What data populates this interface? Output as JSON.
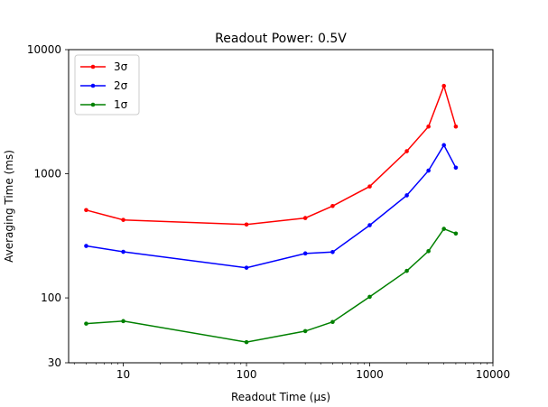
{
  "chart_data": {
    "type": "line",
    "title": "Readout Power: 0.5V",
    "xlabel": "Readout Time (μs)",
    "ylabel": "Averaging Time (ms)",
    "xscale": "log",
    "yscale": "log",
    "xlim": [
      3.6,
      10000
    ],
    "ylim": [
      30,
      10000
    ],
    "xticks": [
      10,
      100,
      1000,
      10000
    ],
    "xtick_labels": [
      "10",
      "100",
      "1000",
      "10000"
    ],
    "yticks": [
      30,
      100,
      1000,
      10000
    ],
    "ytick_labels": [
      "30",
      "100",
      "1000",
      "10000"
    ],
    "grid": false,
    "legend_position": "upper-left",
    "x": [
      5,
      10,
      100,
      300,
      500,
      1000,
      2000,
      3000,
      4000,
      5000
    ],
    "series": [
      {
        "name": "3σ",
        "color": "#ff0000",
        "values": [
          510,
          425,
          390,
          440,
          550,
          790,
          1520,
          2400,
          5100,
          2400
        ]
      },
      {
        "name": "2σ",
        "color": "#0000ff",
        "values": [
          262,
          235,
          175,
          228,
          234,
          385,
          670,
          1060,
          1700,
          1120
        ]
      },
      {
        "name": "1σ",
        "color": "#008000",
        "values": [
          62,
          65,
          44,
          54,
          64,
          102,
          165,
          238,
          360,
          330
        ]
      }
    ]
  }
}
